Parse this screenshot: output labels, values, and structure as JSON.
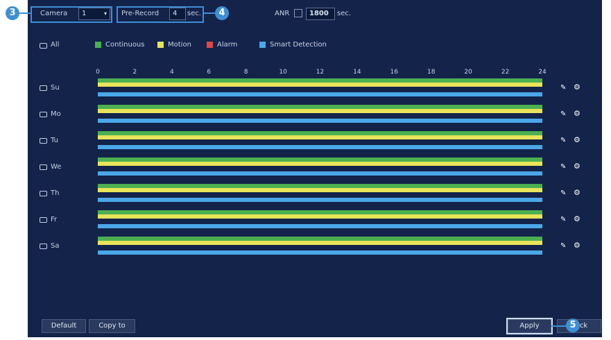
{
  "callouts": [
    "3",
    "4",
    "5"
  ],
  "camera": {
    "label": "Camera",
    "value": "1"
  },
  "pre_record": {
    "label": "Pre-Record",
    "value": "4",
    "unit": "sec."
  },
  "anr": {
    "label": "ANR",
    "value": "1800",
    "unit": "sec."
  },
  "legend": {
    "all": "All",
    "items": [
      {
        "name": "Continuous",
        "color": "#4cb050"
      },
      {
        "name": "Motion",
        "color": "#e8e45a"
      },
      {
        "name": "Alarm",
        "color": "#e04848"
      },
      {
        "name": "Smart Detection",
        "color": "#4aa8e8"
      }
    ]
  },
  "hours": [
    "0",
    "2",
    "4",
    "6",
    "8",
    "10",
    "12",
    "14",
    "16",
    "18",
    "20",
    "22",
    "24"
  ],
  "days": [
    "Su",
    "Mo",
    "Tu",
    "We",
    "Th",
    "Fr",
    "Sa"
  ],
  "buttons": {
    "default": "Default",
    "copy": "Copy to",
    "apply": "Apply",
    "back": "Back"
  }
}
